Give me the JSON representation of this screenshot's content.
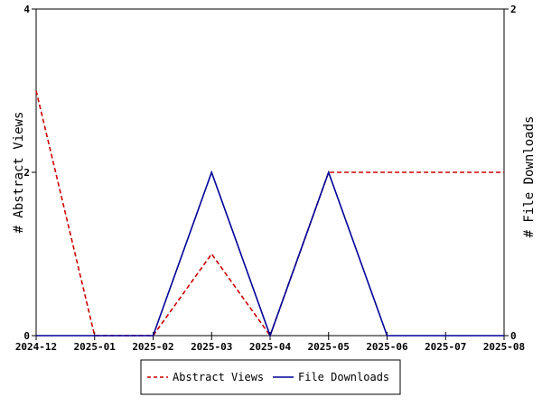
{
  "chart_data": {
    "type": "line",
    "x_categories": [
      "2024-12",
      "2025-01",
      "2025-02",
      "2025-03",
      "2025-04",
      "2025-05",
      "2025-06",
      "2025-07",
      "2025-08"
    ],
    "left_axis": {
      "label": "# Abstract Views",
      "ylim": [
        0,
        4
      ],
      "ticks": [
        "0",
        "2",
        "4"
      ]
    },
    "right_axis": {
      "label": "# File Downloads",
      "ylim": [
        0,
        2
      ],
      "ticks": [
        "0",
        "2"
      ]
    },
    "series": [
      {
        "name": "Abstract Views",
        "axis": "left",
        "color": "#cc0000",
        "dash": "dashed",
        "values": [
          3,
          0,
          0,
          1,
          0,
          2,
          2,
          2,
          2
        ]
      },
      {
        "name": "File Downloads",
        "axis": "right",
        "color": "#000099",
        "dash": "solid",
        "values": [
          0,
          0,
          0,
          1,
          0,
          1,
          0,
          0,
          0
        ]
      }
    ],
    "legend": {
      "position": "bottom-center",
      "entries": [
        "Abstract Views",
        "File Downloads"
      ]
    },
    "grid": false
  }
}
